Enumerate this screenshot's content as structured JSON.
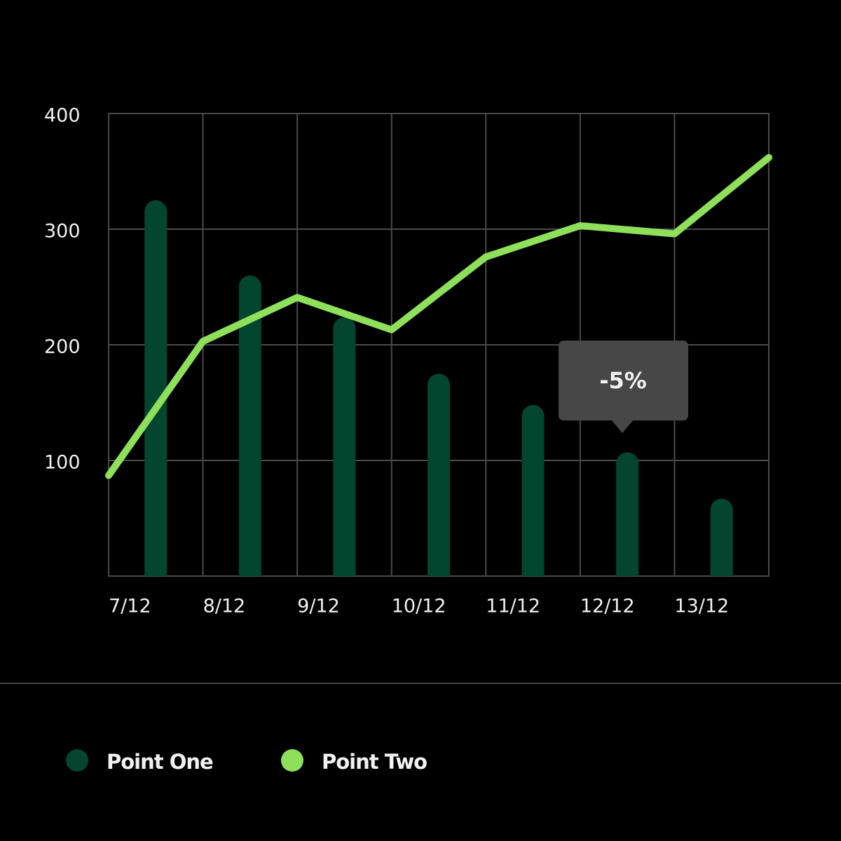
{
  "chart_data": {
    "type": "bar_line",
    "xlim": [
      0,
      7
    ],
    "xticks": [
      {
        "value": 0,
        "label": "7/12"
      },
      {
        "value": 1,
        "label": "8/12"
      },
      {
        "value": 2,
        "label": "9/12"
      },
      {
        "value": 3,
        "label": "10/12"
      },
      {
        "value": 4,
        "label": "11/12"
      },
      {
        "value": 5,
        "label": "12/12"
      },
      {
        "value": 6,
        "label": "13/12"
      }
    ],
    "ylim": [
      0,
      400
    ],
    "yticks": [
      100,
      200,
      300,
      400
    ],
    "grid": true,
    "series": [
      {
        "name": "Point One",
        "type": "bar",
        "color": "#03452f",
        "x": [
          0.5,
          1.5,
          2.5,
          3.5,
          4.5,
          5.5,
          6.5
        ],
        "values": [
          325,
          260,
          224,
          175,
          148,
          107,
          67
        ]
      },
      {
        "name": "Point Two",
        "type": "line",
        "color": "#8ee05a",
        "x": [
          0,
          1,
          2,
          3,
          4,
          5,
          6,
          7
        ],
        "values": [
          87,
          203,
          241,
          213,
          276,
          303,
          296,
          362
        ]
      }
    ],
    "annotation": "-5%",
    "legend": "bottom-left"
  }
}
